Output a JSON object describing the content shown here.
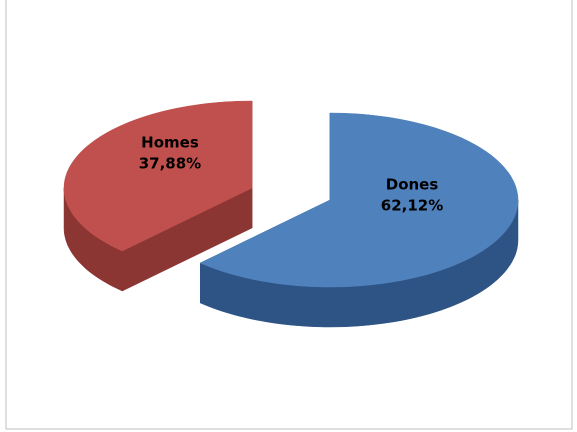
{
  "chart_data": {
    "type": "pie",
    "categories": [
      "Dones",
      "Homes"
    ],
    "values": [
      62.12,
      37.88
    ],
    "value_labels": [
      "62,12%",
      "37,88%"
    ],
    "colors": [
      "#4f81bd",
      "#c0504d"
    ],
    "wall_colors": [
      "#2e5486",
      "#8c3634"
    ]
  }
}
